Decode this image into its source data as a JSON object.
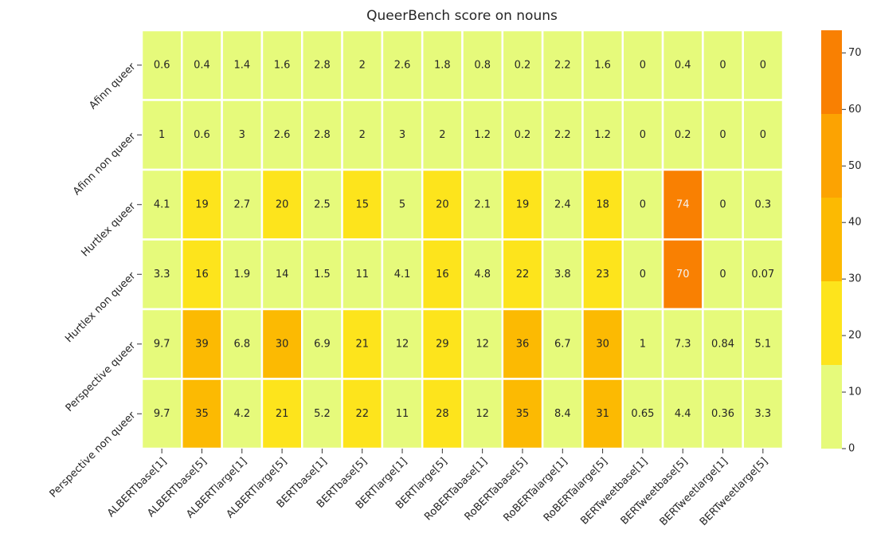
{
  "chart_data": {
    "type": "heatmap",
    "title": "QueerBench score on nouns",
    "x": [
      "ALBERTbase[1]",
      "ALBERTbase[5]",
      "ALBERTlarge[1]",
      "ALBERTlarge[5]",
      "BERTbase[1]",
      "BERTbase[5]",
      "BERTlarge[1]",
      "BERTlarge[5]",
      "RoBERTabase[1]",
      "RoBERTabase[5]",
      "RoBERTalarge[1]",
      "RoBERTalarge[5]",
      "BERTweetbase[1]",
      "BERTweetbase[5]",
      "BERTweetlarge[1]",
      "BERTweetlarge[5]"
    ],
    "y": [
      "Afinn queer",
      "Afinn non queer",
      "Hurtlex queer",
      "Hurtlex non queer",
      "Perspective queer",
      "Perspective non queer"
    ],
    "values": [
      [
        0.6,
        0.4,
        1.4,
        1.6,
        2.8,
        2,
        2.6,
        1.8,
        0.8,
        0.2,
        2.2,
        1.6,
        0,
        0.4,
        0,
        0
      ],
      [
        1,
        0.6,
        3,
        2.6,
        2.8,
        2,
        3,
        2,
        1.2,
        0.2,
        2.2,
        1.2,
        0,
        0.2,
        0,
        0
      ],
      [
        4.1,
        19,
        2.7,
        20,
        2.5,
        15,
        5,
        20,
        2.1,
        19,
        2.4,
        18,
        0,
        74,
        0,
        0.3
      ],
      [
        3.3,
        16,
        1.9,
        14,
        1.5,
        11,
        4.1,
        16,
        4.8,
        22,
        3.8,
        23,
        0,
        70,
        0,
        0.07
      ],
      [
        9.7,
        39,
        6.8,
        30,
        6.9,
        21,
        12,
        29,
        12,
        36,
        6.7,
        30,
        1,
        7.3,
        0.84,
        5.1
      ],
      [
        9.7,
        35,
        4.2,
        21,
        5.2,
        22,
        11,
        28,
        12,
        35,
        8.4,
        31,
        0.65,
        4.4,
        0.36,
        3.3
      ]
    ],
    "color_bounds": [
      0,
      14.8,
      29.6,
      44.4,
      59.2,
      74
    ],
    "colors": [
      "#e6fa7b",
      "#fde41c",
      "#fcba02",
      "#fca302",
      "#f98002"
    ],
    "clim": [
      0,
      74
    ],
    "cticks": [
      0,
      10,
      20,
      30,
      40,
      50,
      60,
      70
    ]
  }
}
